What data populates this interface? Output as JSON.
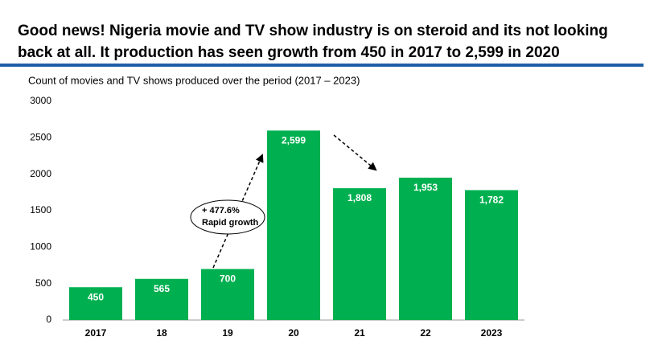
{
  "chart_data": {
    "type": "bar",
    "title": "Good news! Nigeria movie and TV show industry is on steroid and its not looking",
    "title_line2": "back at all. It production has seen growth from 450 in 2017 to 2,599 in 2020",
    "subtitle": "Count of movies and TV shows produced  over the period (2017 – 2023)",
    "categories": [
      "2017",
      "18",
      "19",
      "20",
      "21",
      "22",
      "2023"
    ],
    "values": [
      450,
      565,
      700,
      2599,
      1808,
      1953,
      1782
    ],
    "value_labels": [
      "450",
      "565",
      "700",
      "2,599",
      "1,808",
      "1,953",
      "1,782"
    ],
    "color": "#00b050",
    "ylim": [
      0,
      3000
    ],
    "yticks": [
      0,
      500,
      1000,
      1500,
      2000,
      2500,
      3000
    ],
    "grid": false,
    "annotations": [
      "+ 477.6%",
      "Rapid growth"
    ]
  }
}
